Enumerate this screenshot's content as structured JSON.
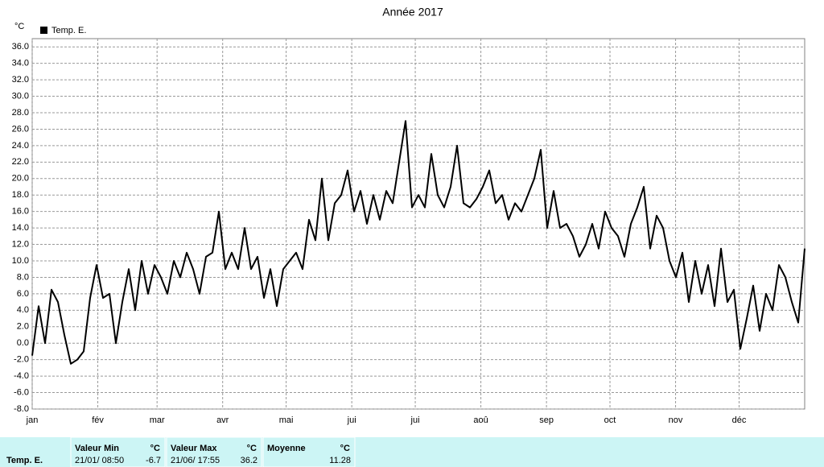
{
  "chart_data": {
    "type": "line",
    "title": "Année 2017",
    "y_label": "°C",
    "series": [
      {
        "name": "Temp. E.",
        "color": "#000000",
        "values": [
          -1.5,
          4.5,
          0,
          6.5,
          5,
          1,
          -2.5,
          -2,
          -1,
          5.5,
          9.5,
          5.5,
          6,
          0,
          5,
          9,
          4,
          10,
          6,
          9.5,
          8,
          6,
          10,
          8,
          11,
          9,
          6,
          10.5,
          11,
          16,
          9,
          11,
          9,
          14,
          9,
          10.5,
          5.5,
          9,
          4.5,
          9,
          10,
          11,
          9,
          15,
          12.5,
          20,
          12.5,
          17,
          18,
          21,
          16,
          18.5,
          14.5,
          18,
          15,
          18.5,
          17,
          22,
          27,
          16.5,
          18,
          16.5,
          23,
          18,
          16.5,
          19,
          24,
          17,
          16.5,
          17.5,
          19,
          21,
          17,
          18,
          15,
          17,
          16,
          18,
          20,
          23.5,
          14,
          18.5,
          14,
          14.5,
          13,
          10.5,
          12,
          14.5,
          11.5,
          16,
          14,
          13,
          10.5,
          14.5,
          16.5,
          19,
          11.5,
          15.5,
          14,
          10,
          8,
          11,
          5,
          10,
          6,
          9.5,
          4.5,
          11.5,
          5,
          6.5,
          -0.7,
          3,
          7,
          1.5,
          6,
          4,
          9.5,
          8,
          5,
          2.5,
          11.5
        ]
      }
    ],
    "xlim": [
      0,
      365
    ],
    "xticks": [
      {
        "value": 0,
        "label": "jan"
      },
      {
        "value": 31,
        "label": "fév"
      },
      {
        "value": 59,
        "label": "mar"
      },
      {
        "value": 90,
        "label": "avr"
      },
      {
        "value": 120,
        "label": "mai"
      },
      {
        "value": 151,
        "label": "jui"
      },
      {
        "value": 181,
        "label": "jui"
      },
      {
        "value": 212,
        "label": "aoû"
      },
      {
        "value": 243,
        "label": "sep"
      },
      {
        "value": 273,
        "label": "oct"
      },
      {
        "value": 304,
        "label": "nov"
      },
      {
        "value": 334,
        "label": "déc"
      }
    ],
    "ylim": [
      -8,
      37
    ],
    "yticks": [
      {
        "value": -8,
        "label": "-8.0"
      },
      {
        "value": -6,
        "label": "-6.0"
      },
      {
        "value": -4,
        "label": "-4.0"
      },
      {
        "value": -2,
        "label": "-2.0"
      },
      {
        "value": 0,
        "label": "0.0"
      },
      {
        "value": 2,
        "label": "2.0"
      },
      {
        "value": 4,
        "label": "4.0"
      },
      {
        "value": 6,
        "label": "6.0"
      },
      {
        "value": 8,
        "label": "8.0"
      },
      {
        "value": 10,
        "label": "10.0"
      },
      {
        "value": 12,
        "label": "12.0"
      },
      {
        "value": 14,
        "label": "14.0"
      },
      {
        "value": 16,
        "label": "16.0"
      },
      {
        "value": 18,
        "label": "18.0"
      },
      {
        "value": 20,
        "label": "20.0"
      },
      {
        "value": 22,
        "label": "22.0"
      },
      {
        "value": 24,
        "label": "24.0"
      },
      {
        "value": 26,
        "label": "26.0"
      },
      {
        "value": 28,
        "label": "28.0"
      },
      {
        "value": 30,
        "label": "30.0"
      },
      {
        "value": 32,
        "label": "32.0"
      },
      {
        "value": 34,
        "label": "34.0"
      },
      {
        "value": 36,
        "label": "36.0"
      }
    ],
    "grid": true
  },
  "stats": [
    {
      "header": "Valeur Min",
      "date": "21/01/ 08:50",
      "value": -6.7
    },
    {
      "header": "Valeur Max",
      "date": "21/06/ 17:55",
      "value": 36.2
    },
    {
      "header": "Moyenne",
      "value": 11.28
    }
  ]
}
